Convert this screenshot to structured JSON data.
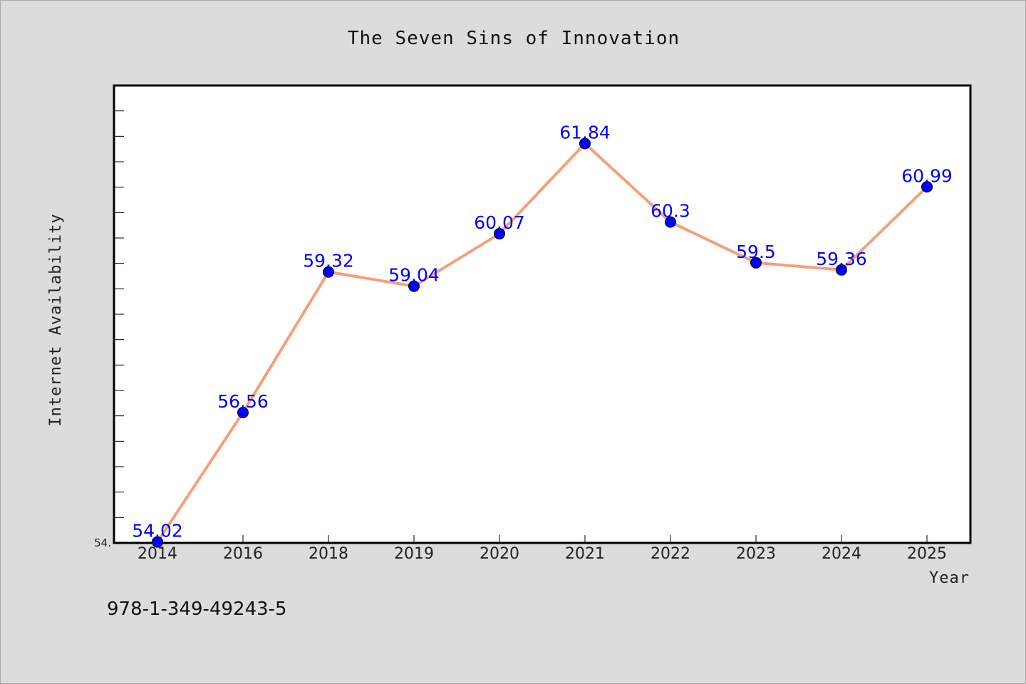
{
  "chart_data": {
    "type": "line",
    "title": "The Seven Sins of Innovation",
    "xlabel": "Year",
    "ylabel": "Internet Availability",
    "categories": [
      "2014",
      "2016",
      "2018",
      "2019",
      "2020",
      "2021",
      "2022",
      "2023",
      "2024",
      "2025"
    ],
    "series": [
      {
        "values": [
          54.02,
          56.56,
          59.32,
          59.04,
          60.07,
          61.84,
          60.3,
          59.5,
          59.36,
          60.99
        ],
        "labels": [
          "54.02",
          "56.56",
          "59.32",
          "59.04",
          "60.07",
          "61.84",
          "60.3",
          "59.5",
          "59.36",
          "60.99"
        ]
      }
    ],
    "ylim": [
      54.0,
      62.98
    ],
    "y_tick_labels": [
      "54."
    ],
    "grid": false,
    "colors": {
      "line": "#f5a07a",
      "marker": "#0000ff",
      "data_label": "#0000ff",
      "plot_bg": "#ffffff",
      "figure_bg": "#dcdcdc"
    }
  },
  "footnote": "978-1-349-49243-5"
}
